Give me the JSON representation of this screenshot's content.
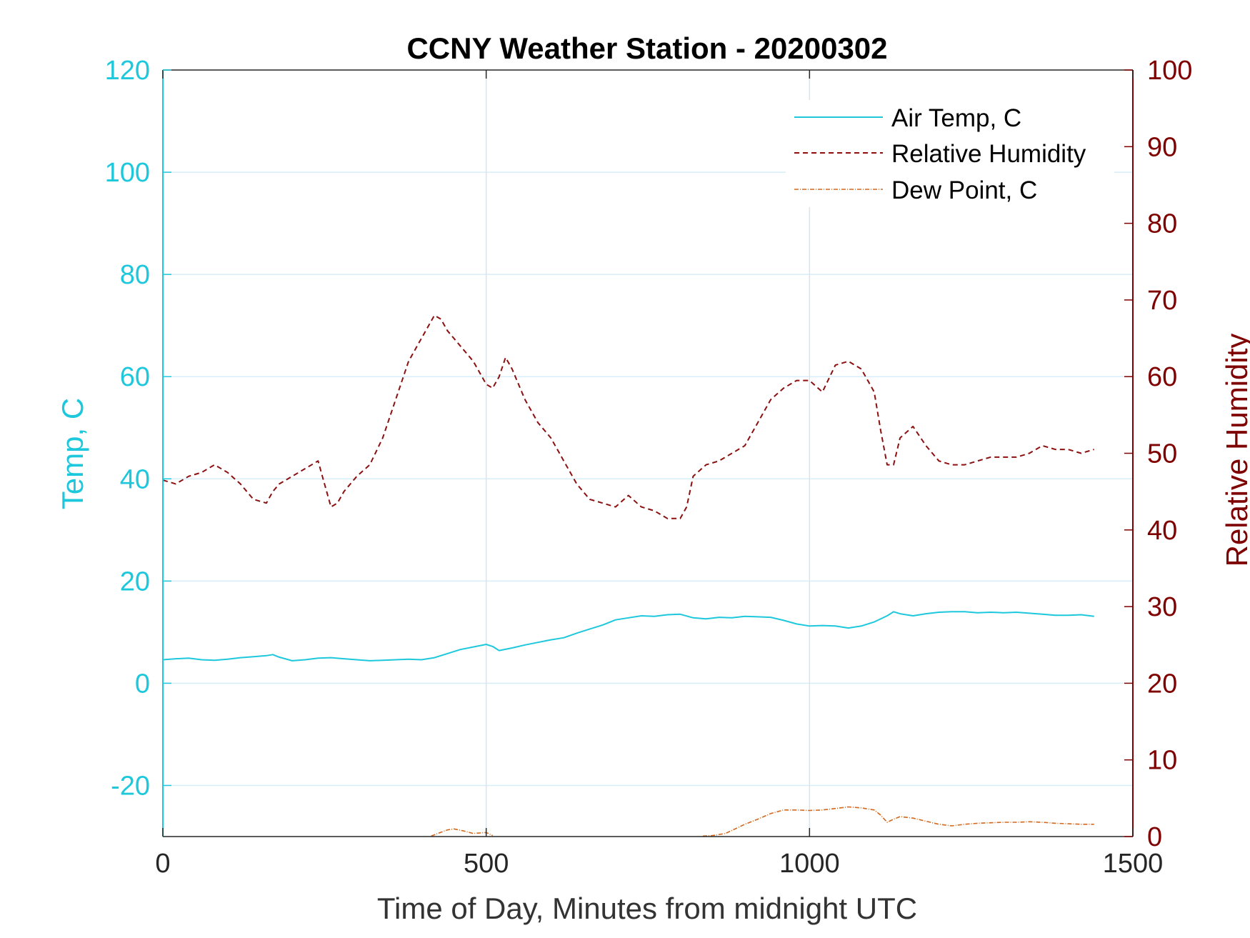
{
  "chart_data": {
    "type": "line",
    "title": "CCNY Weather Station - 20200302",
    "xlabel": "Time of Day, Minutes from midnight UTC",
    "ylabel_left": "Temp, C",
    "ylabel_right": "Relative Humidity",
    "xlim": [
      0,
      1500
    ],
    "ylim_left": [
      -30,
      120
    ],
    "ylim_right": [
      0,
      100
    ],
    "xticks": [
      0,
      500,
      1000,
      1500
    ],
    "yticks_left": [
      -20,
      0,
      20,
      40,
      60,
      80,
      100,
      120
    ],
    "yticks_right": [
      0,
      10,
      20,
      30,
      40,
      50,
      60,
      70,
      80,
      90,
      100
    ],
    "grid": true,
    "legend_position": "top-right",
    "colors": {
      "left_axis": "#1ec8dc",
      "right_axis": "#7f0000",
      "air_temp": "#1ec8dc",
      "humidity": "#8b1010",
      "dew_point": "#d2691e",
      "grid": "#d8eef8"
    },
    "series": [
      {
        "name": "Air Temp, C",
        "axis": "left",
        "style": "solid",
        "x": [
          0,
          20,
          40,
          60,
          80,
          100,
          120,
          140,
          160,
          170,
          180,
          200,
          220,
          240,
          260,
          280,
          300,
          320,
          340,
          360,
          380,
          400,
          420,
          440,
          460,
          480,
          500,
          510,
          520,
          540,
          560,
          580,
          600,
          620,
          640,
          660,
          680,
          700,
          720,
          740,
          760,
          780,
          800,
          820,
          840,
          860,
          880,
          900,
          920,
          940,
          960,
          980,
          1000,
          1020,
          1040,
          1060,
          1080,
          1100,
          1120,
          1130,
          1140,
          1160,
          1180,
          1200,
          1220,
          1240,
          1260,
          1280,
          1300,
          1320,
          1340,
          1360,
          1380,
          1400,
          1420,
          1440
        ],
        "values": [
          4.6,
          4.8,
          4.9,
          4.6,
          4.5,
          4.7,
          5.0,
          5.2,
          5.4,
          5.6,
          5.1,
          4.4,
          4.6,
          4.9,
          5.0,
          4.8,
          4.6,
          4.4,
          4.5,
          4.6,
          4.7,
          4.6,
          5.0,
          5.8,
          6.6,
          7.1,
          7.6,
          7.2,
          6.4,
          6.9,
          7.5,
          8.0,
          8.5,
          8.9,
          9.8,
          10.6,
          11.4,
          12.4,
          12.8,
          13.2,
          13.1,
          13.4,
          13.5,
          12.8,
          12.6,
          12.9,
          12.8,
          13.1,
          13.0,
          12.9,
          12.3,
          11.6,
          11.2,
          11.3,
          11.2,
          10.8,
          11.2,
          12.0,
          13.2,
          14.0,
          13.6,
          13.2,
          13.6,
          13.9,
          14.0,
          14.0,
          13.8,
          13.9,
          13.8,
          13.9,
          13.7,
          13.5,
          13.3,
          13.3,
          13.4,
          13.1
        ]
      },
      {
        "name": "Relative Humidity",
        "axis": "right",
        "style": "dashed",
        "x": [
          0,
          20,
          40,
          60,
          80,
          100,
          120,
          140,
          160,
          170,
          180,
          200,
          220,
          240,
          250,
          260,
          270,
          280,
          300,
          320,
          340,
          360,
          380,
          400,
          420,
          430,
          440,
          460,
          480,
          500,
          510,
          520,
          530,
          540,
          560,
          580,
          600,
          620,
          640,
          660,
          680,
          700,
          720,
          740,
          760,
          780,
          800,
          810,
          820,
          840,
          860,
          880,
          900,
          920,
          940,
          960,
          980,
          1000,
          1020,
          1040,
          1060,
          1080,
          1100,
          1110,
          1120,
          1130,
          1140,
          1160,
          1180,
          1200,
          1220,
          1240,
          1260,
          1280,
          1300,
          1320,
          1340,
          1360,
          1380,
          1400,
          1420,
          1440
        ],
        "values": [
          46.5,
          46.0,
          47.0,
          47.5,
          48.5,
          47.5,
          46.0,
          44.0,
          43.5,
          45.0,
          46.0,
          47.0,
          48.0,
          49.0,
          46.0,
          43.0,
          43.5,
          45.0,
          47.0,
          48.5,
          52.0,
          57.0,
          62.0,
          65.0,
          68.0,
          67.5,
          66.0,
          64.0,
          62.0,
          59.0,
          58.5,
          60.0,
          62.5,
          61.0,
          57.0,
          54.0,
          52.0,
          49.0,
          46.0,
          44.0,
          43.5,
          43.0,
          44.5,
          43.0,
          42.5,
          41.5,
          41.5,
          43.0,
          47.0,
          48.5,
          49.0,
          50.0,
          51.0,
          54.0,
          57.0,
          58.5,
          59.5,
          59.5,
          58.0,
          61.5,
          62.0,
          61.0,
          58.0,
          53.0,
          48.5,
          48.5,
          52.0,
          53.5,
          51.0,
          49.0,
          48.5,
          48.5,
          49.0,
          49.5,
          49.5,
          49.5,
          50.0,
          51.0,
          50.5,
          50.5,
          50.0,
          50.5
        ]
      },
      {
        "name": "Dew Point, C",
        "axis": "left",
        "style": "dashdot",
        "segments": [
          {
            "x": [
              415,
              425,
              440,
              450,
              465,
              480,
              500,
              510
            ],
            "values": [
              -29.9,
              -29.4,
              -28.7,
              -28.5,
              -28.9,
              -29.4,
              -29.2,
              -29.8
            ]
          },
          {
            "x": [
              835,
              850,
              870,
              880,
              900,
              920,
              940,
              960,
              980,
              1000,
              1020,
              1040,
              1060,
              1080,
              1100,
              1110,
              1120,
              1130,
              1140,
              1160,
              1180,
              1200,
              1220,
              1240,
              1260,
              1280,
              1300,
              1320,
              1340,
              1360,
              1380,
              1400,
              1420,
              1440
            ],
            "values": [
              -29.9,
              -29.8,
              -29.4,
              -28.8,
              -27.6,
              -26.6,
              -25.5,
              -24.8,
              -24.8,
              -24.9,
              -24.8,
              -24.5,
              -24.2,
              -24.4,
              -24.8,
              -25.8,
              -27.2,
              -26.6,
              -26.1,
              -26.4,
              -27.0,
              -27.6,
              -27.9,
              -27.6,
              -27.4,
              -27.3,
              -27.2,
              -27.2,
              -27.1,
              -27.2,
              -27.4,
              -27.5,
              -27.6,
              -27.6
            ]
          }
        ]
      }
    ]
  }
}
